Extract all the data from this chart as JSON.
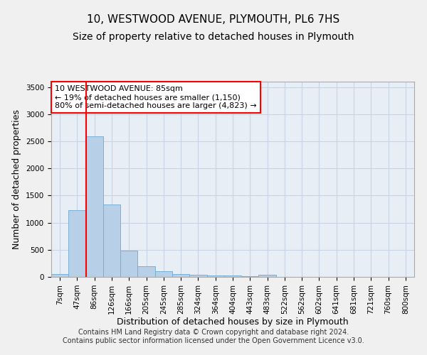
{
  "title1": "10, WESTWOOD AVENUE, PLYMOUTH, PL6 7HS",
  "title2": "Size of property relative to detached houses in Plymouth",
  "xlabel": "Distribution of detached houses by size in Plymouth",
  "ylabel": "Number of detached properties",
  "bar_labels": [
    "7sqm",
    "47sqm",
    "86sqm",
    "126sqm",
    "166sqm",
    "205sqm",
    "245sqm",
    "285sqm",
    "324sqm",
    "364sqm",
    "404sqm",
    "443sqm",
    "483sqm",
    "522sqm",
    "562sqm",
    "602sqm",
    "641sqm",
    "681sqm",
    "721sqm",
    "760sqm",
    "800sqm"
  ],
  "bar_values": [
    50,
    1230,
    2590,
    1340,
    490,
    190,
    110,
    50,
    35,
    25,
    20,
    15,
    35,
    0,
    0,
    0,
    0,
    0,
    0,
    0,
    0
  ],
  "bar_color": "#b8cfe8",
  "bar_edge_color": "#7aafd4",
  "annotation_title": "10 WESTWOOD AVENUE: 85sqm",
  "annotation_line1": "← 19% of detached houses are smaller (1,150)",
  "annotation_line2": "80% of semi-detached houses are larger (4,823) →",
  "ylim": [
    0,
    3600
  ],
  "yticks": [
    0,
    500,
    1000,
    1500,
    2000,
    2500,
    3000,
    3500
  ],
  "footnote1": "Contains HM Land Registry data © Crown copyright and database right 2024.",
  "footnote2": "Contains public sector information licensed under the Open Government Licence v3.0.",
  "bg_color": "#e8eef6",
  "grid_color": "#c8d4e4",
  "title_fontsize": 11,
  "subtitle_fontsize": 10,
  "axis_label_fontsize": 9,
  "tick_fontsize": 7.5,
  "annot_fontsize": 8,
  "footnote_fontsize": 7
}
